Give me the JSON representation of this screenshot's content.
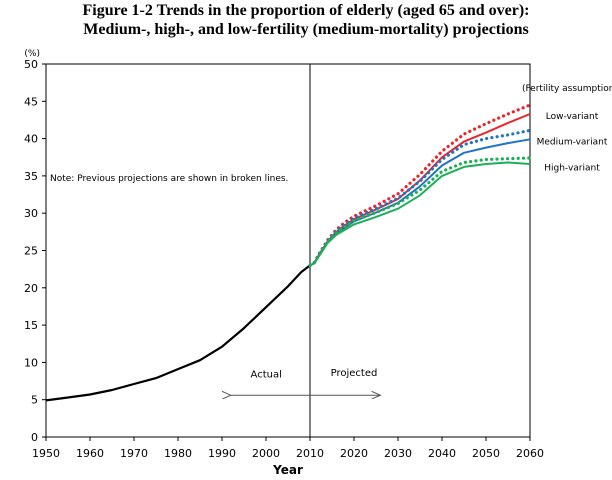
{
  "title_line1": "Figure 1-2 Trends in the proportion of elderly (aged 65 and over):",
  "title_line2": "Medium-, high-, and low-fertility (medium-mortality) projections",
  "chart_data": {
    "type": "line",
    "title": "Figure 1-2 Trends in the proportion of elderly (aged 65 and over): Medium-, high-, and low-fertility (medium-mortality) projections",
    "xlabel": "Year",
    "ylabel": "(%)",
    "xlim": [
      1950,
      2060
    ],
    "ylim": [
      0,
      50
    ],
    "x_ticks": [
      1950,
      1960,
      1970,
      1980,
      1990,
      2000,
      2010,
      2020,
      2030,
      2040,
      2050,
      2060
    ],
    "y_ticks": [
      0,
      5,
      10,
      15,
      20,
      25,
      30,
      35,
      40,
      45,
      50
    ],
    "grid": false,
    "divider_year": 2010,
    "legend_header": "(Fertility assumption)",
    "note": "Note: Previous projections are shown in broken lines.",
    "actual_label": "Actual",
    "projected_label": "Projected",
    "arrow_range": [
      1992,
      2026
    ],
    "series": [
      {
        "name": "Actual",
        "style": "solid",
        "color": "#000000",
        "points": [
          [
            1950,
            4.9
          ],
          [
            1955,
            5.3
          ],
          [
            1960,
            5.7
          ],
          [
            1965,
            6.3
          ],
          [
            1970,
            7.1
          ],
          [
            1975,
            7.9
          ],
          [
            1980,
            9.1
          ],
          [
            1985,
            10.3
          ],
          [
            1990,
            12.1
          ],
          [
            1995,
            14.6
          ],
          [
            2000,
            17.4
          ],
          [
            2005,
            20.2
          ],
          [
            2008,
            22.1
          ],
          [
            2010,
            23.0
          ]
        ]
      },
      {
        "name": "Low-variant",
        "style": "solid",
        "color": "#e8262b",
        "points": [
          [
            2010,
            23.0
          ],
          [
            2011,
            23.3
          ],
          [
            2012,
            24.4
          ],
          [
            2014,
            26.2
          ],
          [
            2016,
            27.5
          ],
          [
            2018,
            28.4
          ],
          [
            2020,
            29.2
          ],
          [
            2025,
            30.5
          ],
          [
            2030,
            31.9
          ],
          [
            2035,
            34.4
          ],
          [
            2040,
            37.5
          ],
          [
            2045,
            39.6
          ],
          [
            2050,
            40.8
          ],
          [
            2055,
            42.1
          ],
          [
            2060,
            43.3
          ]
        ]
      },
      {
        "name": "Medium-variant",
        "style": "solid",
        "color": "#1f74c4",
        "points": [
          [
            2010,
            23.0
          ],
          [
            2011,
            23.3
          ],
          [
            2012,
            24.3
          ],
          [
            2014,
            26.1
          ],
          [
            2016,
            27.3
          ],
          [
            2018,
            28.1
          ],
          [
            2020,
            28.9
          ],
          [
            2025,
            30.1
          ],
          [
            2030,
            31.4
          ],
          [
            2035,
            33.6
          ],
          [
            2040,
            36.4
          ],
          [
            2045,
            38.1
          ],
          [
            2050,
            38.8
          ],
          [
            2055,
            39.4
          ],
          [
            2060,
            39.9
          ]
        ]
      },
      {
        "name": "High-variant",
        "style": "solid",
        "color": "#1fae58",
        "points": [
          [
            2010,
            23.0
          ],
          [
            2011,
            23.3
          ],
          [
            2012,
            24.2
          ],
          [
            2014,
            26.0
          ],
          [
            2016,
            27.1
          ],
          [
            2018,
            27.8
          ],
          [
            2020,
            28.5
          ],
          [
            2025,
            29.5
          ],
          [
            2030,
            30.6
          ],
          [
            2035,
            32.4
          ],
          [
            2040,
            35.0
          ],
          [
            2045,
            36.2
          ],
          [
            2050,
            36.6
          ],
          [
            2055,
            36.8
          ],
          [
            2060,
            36.6
          ]
        ]
      },
      {
        "name": "Low-variant (previous)",
        "style": "dotted",
        "color": "#e8262b",
        "points": [
          [
            2010,
            23.0
          ],
          [
            2011,
            23.4
          ],
          [
            2012,
            24.5
          ],
          [
            2014,
            26.4
          ],
          [
            2016,
            27.8
          ],
          [
            2018,
            28.8
          ],
          [
            2020,
            29.6
          ],
          [
            2025,
            31.0
          ],
          [
            2030,
            32.6
          ],
          [
            2035,
            35.2
          ],
          [
            2040,
            38.3
          ],
          [
            2045,
            40.6
          ],
          [
            2050,
            42.0
          ],
          [
            2055,
            43.3
          ],
          [
            2060,
            44.5
          ]
        ]
      },
      {
        "name": "Medium-variant (previous)",
        "style": "dotted",
        "color": "#1f74c4",
        "points": [
          [
            2010,
            23.0
          ],
          [
            2011,
            23.4
          ],
          [
            2012,
            24.4
          ],
          [
            2014,
            26.3
          ],
          [
            2016,
            27.6
          ],
          [
            2018,
            28.5
          ],
          [
            2020,
            29.3
          ],
          [
            2025,
            30.6
          ],
          [
            2030,
            32.0
          ],
          [
            2035,
            34.3
          ],
          [
            2040,
            37.2
          ],
          [
            2045,
            39.2
          ],
          [
            2050,
            40.0
          ],
          [
            2055,
            40.5
          ],
          [
            2060,
            41.1
          ]
        ]
      },
      {
        "name": "High-variant (previous)",
        "style": "dotted",
        "color": "#1fae58",
        "points": [
          [
            2010,
            23.0
          ],
          [
            2011,
            23.4
          ],
          [
            2012,
            24.3
          ],
          [
            2014,
            26.2
          ],
          [
            2016,
            27.4
          ],
          [
            2018,
            28.2
          ],
          [
            2020,
            29.0
          ],
          [
            2025,
            30.1
          ],
          [
            2030,
            31.3
          ],
          [
            2035,
            33.1
          ],
          [
            2040,
            35.6
          ],
          [
            2045,
            36.8
          ],
          [
            2050,
            37.2
          ],
          [
            2055,
            37.3
          ],
          [
            2060,
            37.4
          ]
        ]
      }
    ],
    "series_labels": [
      {
        "series": "Low-variant",
        "text": "Low-variant"
      },
      {
        "series": "Medium-variant",
        "text": "Medium-variant"
      },
      {
        "series": "High-variant",
        "text": "High-variant"
      }
    ]
  }
}
